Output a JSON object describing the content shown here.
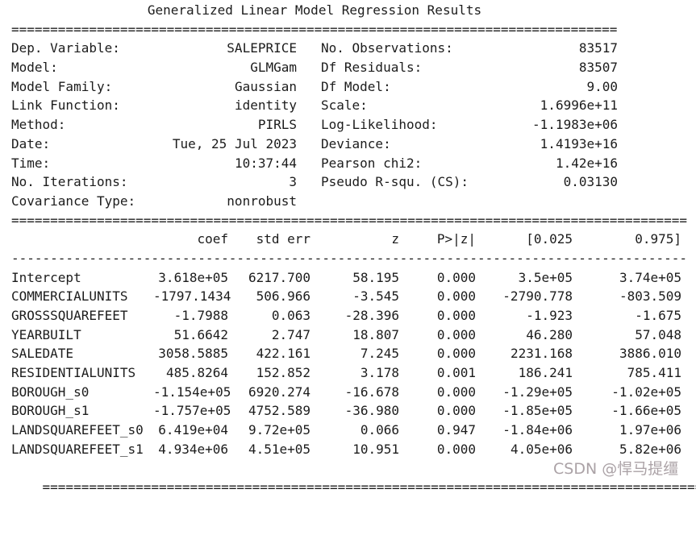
{
  "title": "Generalized Linear Model Regression Results",
  "separators": {
    "top": "==============================================================================",
    "wide": "=======================================================================================",
    "dashed": "---------------------------------------------------------------------------------------"
  },
  "info_rows": [
    {
      "l_label": "Dep. Variable:",
      "l_value": "SALEPRICE",
      "r_label": "No. Observations:",
      "r_value": "83517"
    },
    {
      "l_label": "Model:",
      "l_value": "GLMGam",
      "r_label": "Df Residuals:",
      "r_value": "83507"
    },
    {
      "l_label": "Model Family:",
      "l_value": "Gaussian",
      "r_label": "Df Model:",
      "r_value": "9.00"
    },
    {
      "l_label": "Link Function:",
      "l_value": "identity",
      "r_label": "Scale:",
      "r_value": "1.6996e+11"
    },
    {
      "l_label": "Method:",
      "l_value": "PIRLS",
      "r_label": "Log-Likelihood:",
      "r_value": "-1.1983e+06"
    },
    {
      "l_label": "Date:",
      "l_value": "Tue, 25 Jul 2023",
      "r_label": "Deviance:",
      "r_value": "1.4193e+16"
    },
    {
      "l_label": "Time:",
      "l_value": "10:37:44",
      "r_label": "Pearson chi2:",
      "r_value": "1.42e+16"
    },
    {
      "l_label": "No. Iterations:",
      "l_value": "3",
      "r_label": "Pseudo R-squ. (CS):",
      "r_value": "0.03130"
    },
    {
      "l_label": "Covariance Type:",
      "l_value": "nonrobust",
      "r_label": "",
      "r_value": ""
    }
  ],
  "coef_table": {
    "headers": {
      "name": "",
      "coef": "coef",
      "std_err": "std err",
      "z": "z",
      "p": "P>|z|",
      "ci_low": "[0.025",
      "ci_high": "0.975]"
    },
    "rows": [
      {
        "name": "Intercept",
        "coef": "3.618e+05",
        "std_err": "6217.700",
        "z": "58.195",
        "p": "0.000",
        "ci_low": "3.5e+05",
        "ci_high": "3.74e+05"
      },
      {
        "name": "COMMERCIALUNITS",
        "coef": "-1797.1434",
        "std_err": "506.966",
        "z": "-3.545",
        "p": "0.000",
        "ci_low": "-2790.778",
        "ci_high": "-803.509"
      },
      {
        "name": "GROSSSQUAREFEET",
        "coef": "-1.7988",
        "std_err": "0.063",
        "z": "-28.396",
        "p": "0.000",
        "ci_low": "-1.923",
        "ci_high": "-1.675"
      },
      {
        "name": "YEARBUILT",
        "coef": "51.6642",
        "std_err": "2.747",
        "z": "18.807",
        "p": "0.000",
        "ci_low": "46.280",
        "ci_high": "57.048"
      },
      {
        "name": "SALEDATE",
        "coef": "3058.5885",
        "std_err": "422.161",
        "z": "7.245",
        "p": "0.000",
        "ci_low": "2231.168",
        "ci_high": "3886.010"
      },
      {
        "name": "RESIDENTIALUNITS",
        "coef": "485.8264",
        "std_err": "152.852",
        "z": "3.178",
        "p": "0.001",
        "ci_low": "186.241",
        "ci_high": "785.411"
      },
      {
        "name": "BOROUGH_s0",
        "coef": "-1.154e+05",
        "std_err": "6920.274",
        "z": "-16.678",
        "p": "0.000",
        "ci_low": "-1.29e+05",
        "ci_high": "-1.02e+05"
      },
      {
        "name": "BOROUGH_s1",
        "coef": "-1.757e+05",
        "std_err": "4752.589",
        "z": "-36.980",
        "p": "0.000",
        "ci_low": "-1.85e+05",
        "ci_high": "-1.66e+05"
      },
      {
        "name": "LANDSQUAREFEET_s0",
        "coef": "6.419e+04",
        "std_err": "9.72e+05",
        "z": "0.066",
        "p": "0.947",
        "ci_low": "-1.84e+06",
        "ci_high": "1.97e+06"
      },
      {
        "name": "LANDSQUAREFEET_s1",
        "coef": "4.934e+06",
        "std_err": "4.51e+05",
        "z": "10.951",
        "p": "0.000",
        "ci_low": "4.05e+06",
        "ci_high": "5.82e+06"
      }
    ]
  },
  "watermark": "CSDN @悍马提缰",
  "colors": {
    "text": "#1c1c1c",
    "watermark": "#9c9296",
    "background": "#ffffff"
  }
}
